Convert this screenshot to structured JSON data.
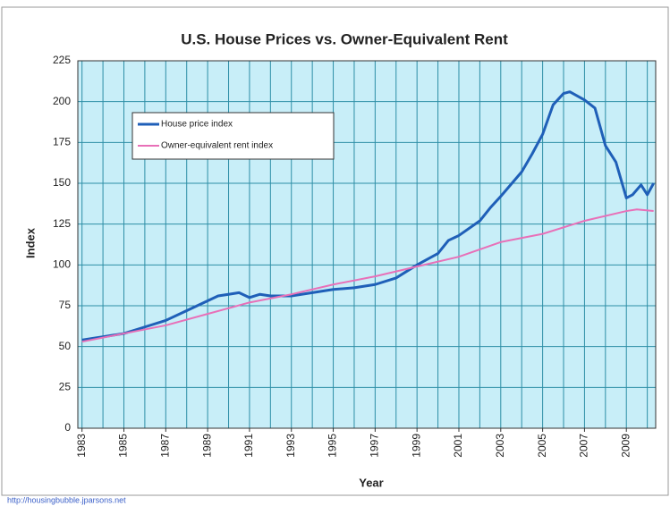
{
  "chart_data": {
    "type": "line",
    "title": "U.S. House Prices vs. Owner-Equivalent Rent",
    "xlabel": "Year",
    "ylabel": "Index",
    "source": "http://housingbubble.jparsons.net",
    "xlim": [
      1982.8,
      2010.4
    ],
    "ylim": [
      0,
      225
    ],
    "xticks": [
      1983,
      1985,
      1987,
      1989,
      1991,
      1993,
      1995,
      1997,
      1999,
      2001,
      2003,
      2005,
      2007,
      2009
    ],
    "xgrid": [
      1983,
      1984,
      1985,
      1986,
      1987,
      1988,
      1989,
      1990,
      1991,
      1992,
      1993,
      1994,
      1995,
      1996,
      1997,
      1998,
      1999,
      2000,
      2001,
      2002,
      2003,
      2004,
      2005,
      2006,
      2007,
      2008,
      2009,
      2010
    ],
    "yticks": [
      0,
      25,
      50,
      75,
      100,
      125,
      150,
      175,
      200,
      225
    ],
    "grid": true,
    "legend": "upper left",
    "series": [
      {
        "name": "House price index",
        "color": "#1f5fb8",
        "x": [
          1983,
          1983.5,
          1984,
          1985,
          1986,
          1987,
          1988,
          1989,
          1989.5,
          1990,
          1990.5,
          1991,
          1991.5,
          1992,
          1993,
          1994,
          1995,
          1996,
          1997,
          1998,
          1999,
          2000,
          2000.5,
          2001,
          2002,
          2002.5,
          2003,
          2004,
          2004.5,
          2005,
          2005.5,
          2006,
          2006.3,
          2007,
          2007.5,
          2008,
          2008.5,
          2009,
          2009.3,
          2009.7,
          2010,
          2010.3
        ],
        "values": [
          54,
          55,
          56,
          58,
          62,
          66,
          72,
          78,
          81,
          82,
          83,
          80,
          82,
          81,
          81,
          83,
          85,
          86,
          88,
          92,
          100,
          107,
          115,
          118,
          127,
          135,
          142,
          157,
          168,
          180,
          198,
          205,
          206,
          201,
          196,
          173,
          163,
          141,
          143,
          149,
          143,
          150
        ]
      },
      {
        "name": "Owner-equivalent rent index",
        "color": "#e870b8",
        "x": [
          1983,
          1985,
          1987,
          1989,
          1991,
          1993,
          1995,
          1997,
          1999,
          2001,
          2003,
          2005,
          2007,
          2009,
          2009.5,
          2010.3
        ],
        "values": [
          53,
          58,
          63,
          70,
          77,
          82,
          88,
          93,
          99,
          105,
          114,
          119,
          127,
          133,
          134,
          133
        ]
      }
    ]
  }
}
